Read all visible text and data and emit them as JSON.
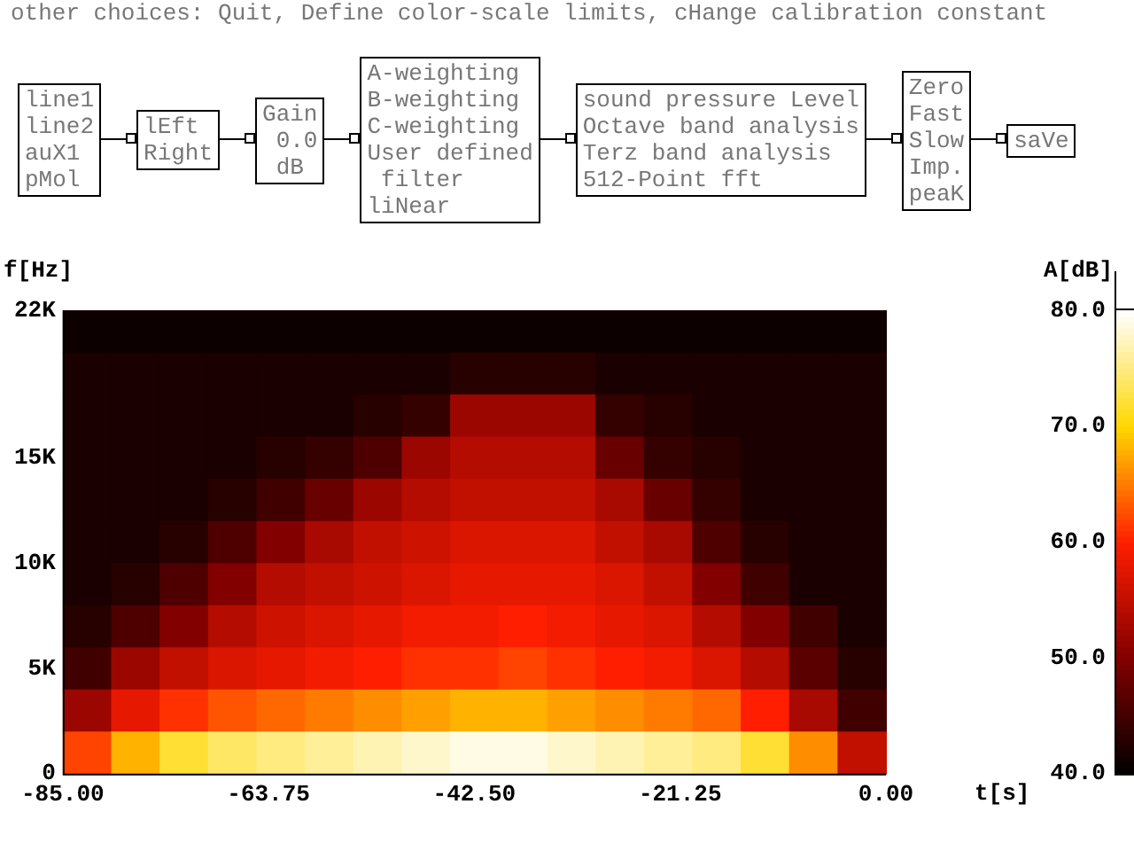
{
  "chart_data": {
    "type": "heatmap",
    "title": "other choices: Quit, Define color-scale limits, cHange calibration constant",
    "annotations": [
      "line1\nline2\nauX1\npMol",
      "lEft\nRight",
      "Gain\n 0.0\n dB",
      "A-weighting\nB-weighting\nC-weighting\nUser defined\n filter\nliNear",
      "sound pressure Level\nOctave band analysis\nTerz band analysis\n512-Point fft",
      "Zero\nFast\nSlow\nImp.\npeaK",
      "saVe"
    ],
    "xlabel": "t[s]",
    "ylabel": "f[Hz]",
    "clabel": "A[dB]",
    "x": [
      -82.5,
      -77.5,
      -72.5,
      -67.5,
      -62.5,
      -57.5,
      -52.5,
      -47.5,
      -42.5,
      -37.5,
      -32.5,
      -27.5,
      -22.5,
      -17.5,
      -12.5,
      -7.5,
      -2.5
    ],
    "cells": [
      [
        41,
        41,
        41,
        41,
        41,
        41,
        41,
        41,
        41,
        41,
        41,
        41,
        41,
        41,
        41,
        41,
        41
      ],
      [
        42,
        42,
        42,
        42,
        42,
        42,
        42,
        42,
        43,
        43,
        43,
        42,
        42,
        42,
        42,
        42,
        42
      ],
      [
        42,
        42,
        42,
        42,
        42,
        42,
        43,
        44,
        52,
        52,
        52,
        44,
        43,
        42,
        42,
        42,
        42
      ],
      [
        42,
        42,
        42,
        42,
        43,
        44,
        46,
        52,
        54,
        54,
        54,
        48,
        44,
        43,
        42,
        42,
        42
      ],
      [
        42,
        42,
        42,
        43,
        45,
        48,
        52,
        54,
        55,
        55,
        55,
        53,
        48,
        44,
        42,
        42,
        42
      ],
      [
        42,
        42,
        43,
        46,
        50,
        53,
        55,
        56,
        57,
        57,
        57,
        55,
        53,
        46,
        43,
        42,
        42
      ],
      [
        42,
        43,
        46,
        50,
        54,
        55,
        56,
        57,
        58,
        58,
        58,
        57,
        55,
        50,
        45,
        42,
        42
      ],
      [
        43,
        46,
        50,
        54,
        56,
        57,
        58,
        59,
        59,
        60,
        59,
        58,
        57,
        54,
        50,
        45,
        42
      ],
      [
        45,
        52,
        55,
        57,
        58,
        59,
        60,
        61,
        61,
        62,
        61,
        60,
        59,
        57,
        54,
        47,
        43
      ],
      [
        52,
        58,
        61,
        63,
        64,
        65,
        66,
        67,
        68,
        68,
        67,
        66,
        65,
        64,
        60,
        53,
        45
      ],
      [
        62,
        68,
        72,
        74,
        75,
        76,
        77,
        78,
        79,
        79,
        78,
        77,
        76,
        75,
        72,
        66,
        55
      ]
    ],
    "xlim": [
      -85,
      0
    ],
    "xticks": [
      {
        "value": -85,
        "label": "-85.00"
      },
      {
        "value": -63.75,
        "label": "-63.75"
      },
      {
        "value": -42.5,
        "label": "-42.50"
      },
      {
        "value": -21.25,
        "label": "-21.25"
      },
      {
        "value": 0,
        "label": "0.00"
      }
    ],
    "ylim": [
      0,
      22000
    ],
    "yticks": [
      0,
      {
        "value": 5000,
        "label": "5K"
      },
      {
        "value": 10000,
        "label": "10K"
      },
      {
        "value": 15000,
        "label": "15K"
      },
      {
        "value": 22000,
        "label": "22K"
      }
    ],
    "clim": [
      40,
      80
    ],
    "cticks": [
      {
        "value": 40,
        "label": "40.0"
      },
      {
        "value": 50,
        "label": "50.0"
      },
      {
        "value": 60,
        "label": "60.0"
      },
      {
        "value": 70,
        "label": "70.0"
      },
      {
        "value": 80,
        "label": "80.0"
      }
    ],
    "grid": false,
    "legend": false
  }
}
